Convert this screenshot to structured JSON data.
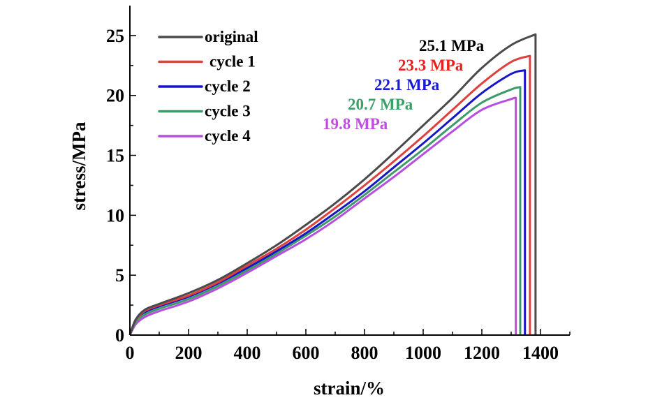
{
  "chart_data": {
    "type": "line",
    "title": "",
    "xlabel": "strain/%",
    "ylabel": "stress/MPa",
    "xlim": [
      0,
      1500
    ],
    "ylim": [
      0,
      27.5
    ],
    "x_ticks": [
      0,
      200,
      400,
      600,
      800,
      1000,
      1200,
      1400
    ],
    "x_minor_ticks": [
      100,
      300,
      500,
      700,
      900,
      1100,
      1300,
      1500
    ],
    "y_ticks": [
      0,
      5,
      10,
      15,
      20,
      25
    ],
    "y_minor_ticks": [
      2.5,
      7.5,
      12.5,
      17.5,
      22.5
    ],
    "grid": false,
    "legend_position": "top-left",
    "series": [
      {
        "name": "original",
        "color": "#4a4a4a",
        "x": [
          0,
          20,
          50,
          100,
          200,
          300,
          400,
          500,
          600,
          700,
          800,
          900,
          1000,
          1100,
          1200,
          1300,
          1383,
          1383
        ],
        "y": [
          0,
          1.3,
          2.1,
          2.6,
          3.5,
          4.6,
          6.0,
          7.5,
          9.2,
          11.0,
          13.0,
          15.2,
          17.5,
          19.8,
          22.3,
          24.2,
          25.1,
          0
        ],
        "annotation": "25.1 MPa",
        "annotation_color": "#000000"
      },
      {
        "name": "cycle 1",
        "color": "#e0403c",
        "x": [
          0,
          20,
          50,
          100,
          200,
          300,
          400,
          500,
          600,
          700,
          800,
          900,
          1000,
          1100,
          1200,
          1300,
          1364,
          1364
        ],
        "y": [
          0,
          1.25,
          2.0,
          2.5,
          3.3,
          4.4,
          5.8,
          7.2,
          8.8,
          10.6,
          12.5,
          14.5,
          16.6,
          18.8,
          21.0,
          22.8,
          23.3,
          0
        ],
        "annotation": "23.3 MPa",
        "annotation_color": "#e8211d"
      },
      {
        "name": "cycle 2",
        "color": "#1616c8",
        "x": [
          0,
          20,
          50,
          100,
          200,
          300,
          400,
          500,
          600,
          700,
          800,
          900,
          1000,
          1100,
          1200,
          1300,
          1347,
          1347
        ],
        "y": [
          0,
          1.3,
          1.9,
          2.4,
          3.2,
          4.3,
          5.6,
          7.0,
          8.5,
          10.2,
          12.0,
          14.0,
          16.0,
          18.1,
          20.2,
          21.8,
          22.1,
          0
        ],
        "annotation": "22.1 MPa",
        "annotation_color": "#1a1adb"
      },
      {
        "name": "cycle 3",
        "color": "#3f9a6a",
        "x": [
          0,
          20,
          50,
          100,
          200,
          300,
          400,
          500,
          600,
          700,
          800,
          900,
          1000,
          1100,
          1200,
          1300,
          1331,
          1331
        ],
        "y": [
          0,
          1.1,
          1.7,
          2.2,
          3.0,
          4.1,
          5.4,
          6.8,
          8.3,
          9.9,
          11.7,
          13.6,
          15.5,
          17.5,
          19.4,
          20.5,
          20.7,
          0
        ],
        "annotation": "20.7 MPa",
        "annotation_color": "#3aa06a"
      },
      {
        "name": "cycle 4",
        "color": "#b84ee0",
        "x": [
          0,
          20,
          50,
          100,
          200,
          300,
          400,
          500,
          600,
          700,
          800,
          900,
          1000,
          1100,
          1200,
          1300,
          1316,
          1316
        ],
        "y": [
          0,
          0.9,
          1.5,
          2.0,
          2.8,
          3.9,
          5.2,
          6.6,
          8.0,
          9.6,
          11.4,
          13.2,
          15.1,
          17.0,
          18.8,
          19.7,
          19.8,
          0
        ],
        "annotation": "19.8 MPa",
        "annotation_color": "#c04ee0"
      }
    ]
  }
}
